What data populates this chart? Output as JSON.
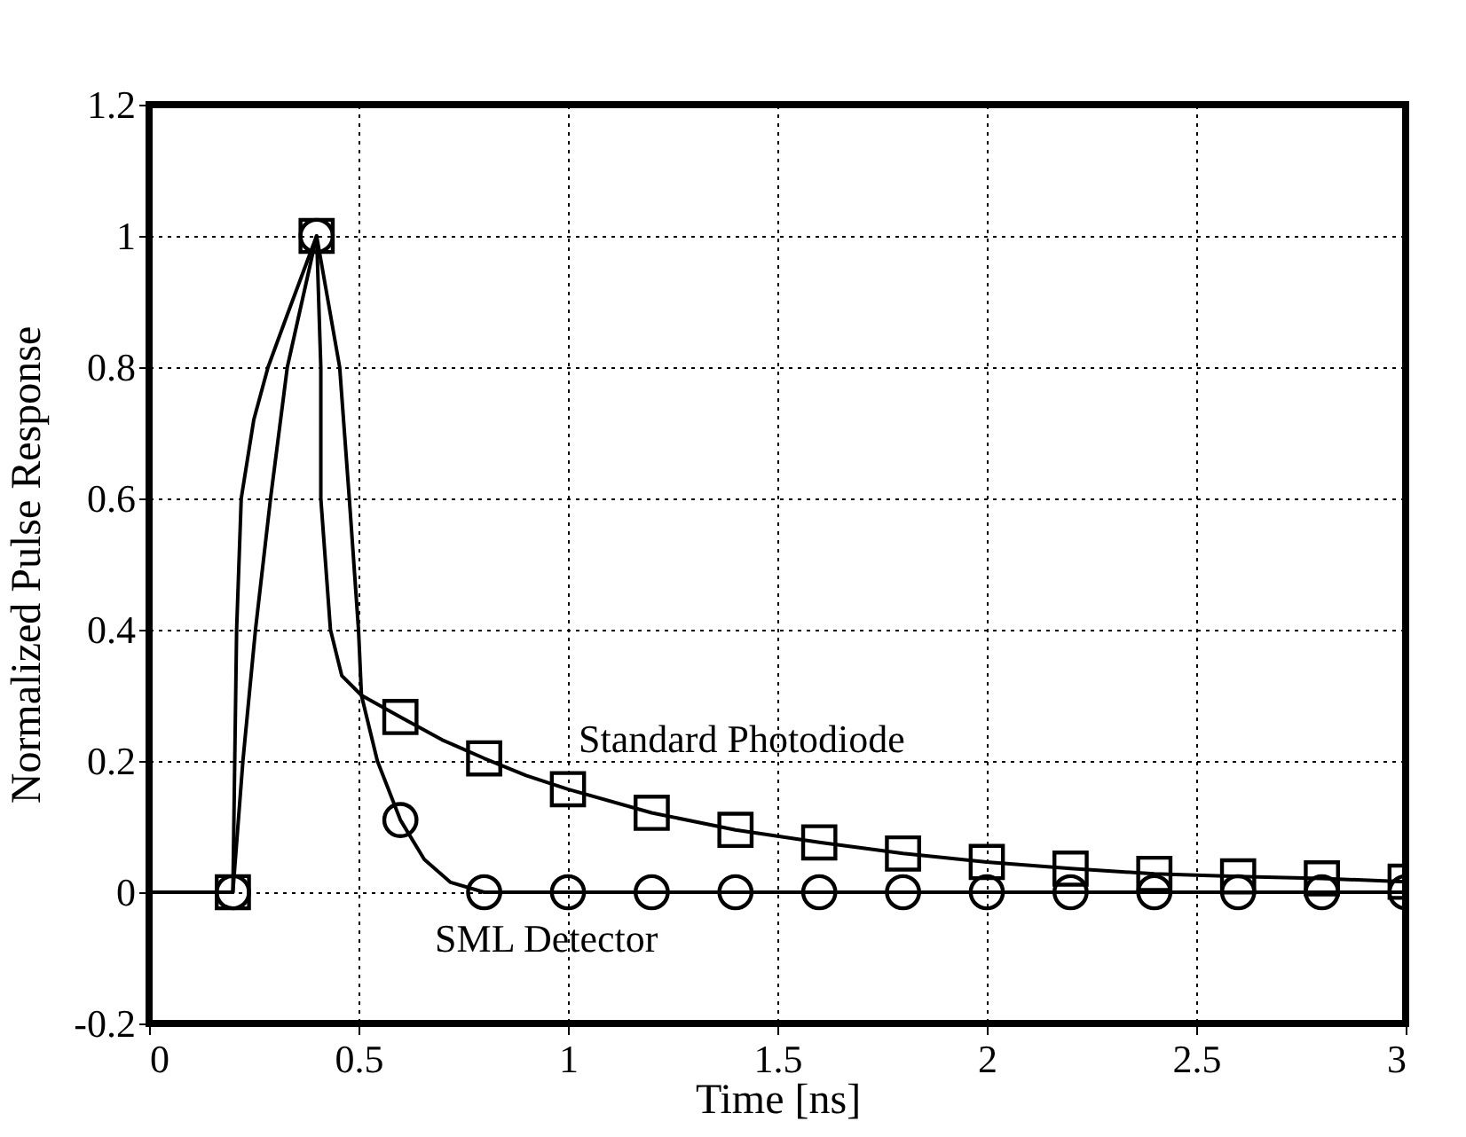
{
  "chart_data": {
    "type": "line",
    "xlabel": "Time [ns]",
    "ylabel": "Normalized Pulse Response",
    "xlim": [
      0,
      3
    ],
    "xticks": [
      0,
      0.5,
      1,
      1.5,
      2,
      2.5,
      3
    ],
    "ylim": [
      -0.2,
      1.2
    ],
    "yticks": [
      -0.2,
      0,
      0.2,
      0.4,
      0.6,
      0.8,
      1,
      1.2
    ],
    "grid": true,
    "legend": false,
    "line_style": "solid",
    "series": [
      {
        "name": "Standard Photodiode",
        "marker": "none",
        "color": "#000000",
        "x": [
          0,
          0.2,
          0.209,
          0.22,
          0.25,
          0.284,
          0.33,
          0.4,
          0.41,
          0.41,
          0.433,
          0.46,
          0.507,
          0.6,
          0.7,
          0.8,
          0.9,
          1.0,
          1.2,
          1.4,
          1.6,
          1.8,
          2.0,
          2.2,
          2.4,
          2.6,
          2.8,
          3.0
        ],
        "values": [
          0,
          0,
          0.4,
          0.6,
          0.72,
          0.8,
          0.88,
          1,
          0.8,
          0.6,
          0.4,
          0.33,
          0.3,
          0.267,
          0.232,
          0.204,
          0.178,
          0.157,
          0.121,
          0.095,
          0.076,
          0.059,
          0.046,
          0.036,
          0.028,
          0.024,
          0.021,
          0.016
        ]
      },
      {
        "name": "SML Detector",
        "marker": "none",
        "color": "#000000",
        "x": [
          0,
          0.2,
          0.224,
          0.254,
          0.29,
          0.33,
          0.4,
          0.455,
          0.478,
          0.5,
          0.507,
          0.545,
          0.6,
          0.657,
          0.72,
          0.8,
          3.0
        ],
        "values": [
          0,
          0,
          0.2,
          0.4,
          0.6,
          0.8,
          1,
          0.8,
          0.6,
          0.4,
          0.3,
          0.2,
          0.11,
          0.05,
          0.015,
          0,
          0
        ]
      },
      {
        "type": "scatter",
        "marker": "square",
        "color": "#000000",
        "x": [
          0.2,
          0.4,
          0.6,
          0.8,
          1.0,
          1.2,
          1.4,
          1.6,
          1.8,
          2.0,
          2.2,
          2.4,
          2.6,
          2.8,
          3.0
        ],
        "values": [
          0,
          1,
          0.267,
          0.204,
          0.157,
          0.121,
          0.095,
          0.076,
          0.059,
          0.046,
          0.036,
          0.028,
          0.024,
          0.021,
          0.016
        ]
      },
      {
        "type": "scatter",
        "marker": "circle",
        "color": "#000000",
        "x": [
          0.2,
          0.4,
          0.6,
          0.8,
          1.0,
          1.2,
          1.4,
          1.6,
          1.8,
          2.0,
          2.2,
          2.4,
          2.6,
          2.8,
          3.0
        ],
        "values": [
          0,
          1,
          0.11,
          0,
          0,
          0,
          0,
          0,
          0,
          0,
          0,
          0,
          0,
          0,
          0
        ]
      }
    ]
  }
}
